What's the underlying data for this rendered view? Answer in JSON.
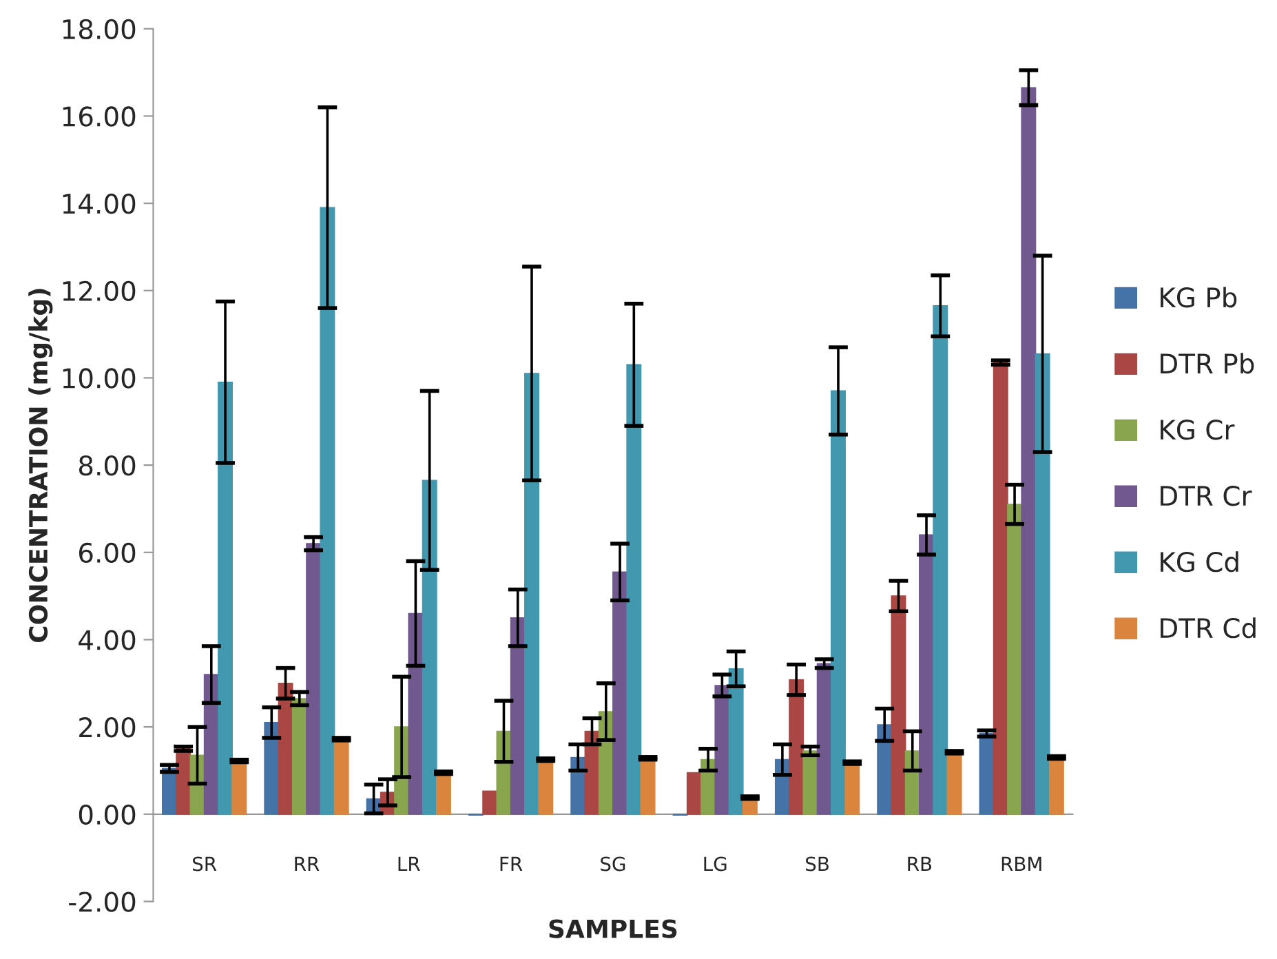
{
  "chart_data": {
    "type": "bar",
    "xlabel": "SAMPLES",
    "ylabel": "CONCENTRATION (mg/kg)",
    "categories": [
      "SR",
      "RR",
      "LR",
      "FR",
      "SG",
      "LG",
      "SB",
      "RB",
      "RBM"
    ],
    "series": [
      {
        "name": "KG Pb",
        "color": "#4572a7",
        "values": [
          1.05,
          2.1,
          0.35,
          -0.02,
          1.3,
          -0.02,
          1.25,
          2.05,
          1.85
        ],
        "errors": [
          0.08,
          0.35,
          0.33,
          null,
          0.3,
          null,
          0.35,
          0.37,
          0.07
        ]
      },
      {
        "name": "DTR Pb",
        "color": "#aa4643",
        "values": [
          1.5,
          3.0,
          0.5,
          0.53,
          1.9,
          0.95,
          3.08,
          5.0,
          10.35
        ],
        "errors": [
          0.05,
          0.35,
          0.3,
          null,
          0.3,
          null,
          0.35,
          0.35,
          0.05
        ]
      },
      {
        "name": "KG Cr",
        "color": "#89a54e",
        "values": [
          1.35,
          2.65,
          2.0,
          1.9,
          2.35,
          1.25,
          1.45,
          1.45,
          7.1
        ],
        "errors": [
          0.65,
          0.15,
          1.15,
          0.7,
          0.65,
          0.25,
          0.1,
          0.45,
          0.45
        ]
      },
      {
        "name": "DTR Cr",
        "color": "#71588f",
        "values": [
          3.2,
          6.2,
          4.6,
          4.5,
          5.55,
          2.95,
          3.45,
          6.4,
          16.65
        ],
        "errors": [
          0.65,
          0.15,
          1.2,
          0.65,
          0.65,
          0.25,
          0.1,
          0.45,
          0.4
        ]
      },
      {
        "name": "KG Cd",
        "color": "#4198af",
        "values": [
          9.9,
          13.9,
          7.65,
          10.1,
          10.3,
          3.33,
          9.7,
          11.65,
          10.55
        ],
        "errors": [
          1.85,
          2.3,
          2.05,
          2.45,
          1.4,
          0.4,
          1.0,
          0.7,
          2.25
        ]
      },
      {
        "name": "DTR Cd",
        "color": "#db843d",
        "values": [
          1.22,
          1.72,
          0.95,
          1.25,
          1.28,
          0.38,
          1.18,
          1.42,
          1.3
        ],
        "errors": [
          0.03,
          0.03,
          0.03,
          0.03,
          0.03,
          0.03,
          0.03,
          0.03,
          0.03
        ]
      }
    ],
    "ylim": [
      -2,
      18
    ],
    "yticks": [
      {
        "value": -2,
        "label": "-2.00"
      },
      {
        "value": 0,
        "label": "0.00"
      },
      {
        "value": 2,
        "label": "2.00"
      },
      {
        "value": 4,
        "label": "4.00"
      },
      {
        "value": 6,
        "label": "6.00"
      },
      {
        "value": 8,
        "label": "8.00"
      },
      {
        "value": 10,
        "label": "10.00"
      },
      {
        "value": 12,
        "label": "12.00"
      },
      {
        "value": 14,
        "label": "14.00"
      },
      {
        "value": 16,
        "label": "16.00"
      },
      {
        "value": 18,
        "label": "18.00"
      }
    ],
    "grid": false,
    "legend": "right"
  }
}
